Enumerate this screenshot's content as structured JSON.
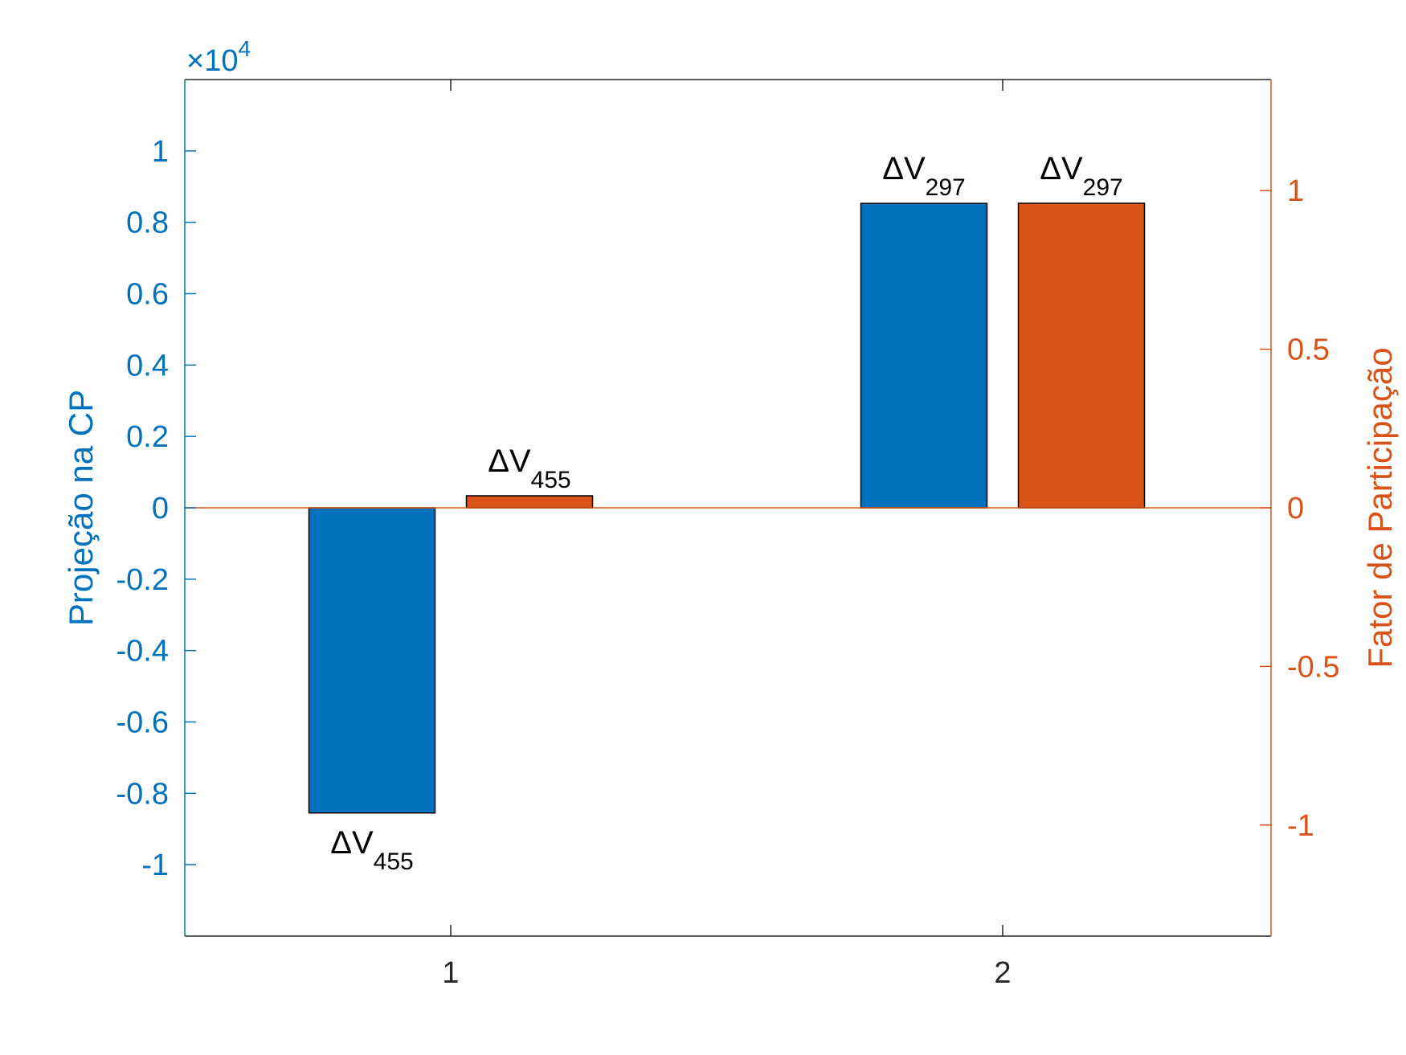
{
  "colors": {
    "left_axis": "#0072BD",
    "right_axis": "#D95319",
    "frame": "#262626",
    "bar_edge": "#000000",
    "label_text": "#000000",
    "background": "#ffffff"
  },
  "chart_data": {
    "type": "bar",
    "categories": [
      "1",
      "2"
    ],
    "x_tick_labels": [
      "1",
      "2"
    ],
    "left_axis": {
      "label": "Projeção na CP",
      "exponent_label": "×10",
      "exponent_power": "4",
      "ylim": [
        -1.2,
        1.2
      ],
      "ticks": [
        "-1",
        "-0.8",
        "-0.6",
        "-0.4",
        "-0.2",
        "0",
        "0.2",
        "0.4",
        "0.6",
        "0.8",
        "1"
      ]
    },
    "right_axis": {
      "label": "Fator de Participação",
      "ylim": [
        -1.35,
        1.35
      ],
      "ticks": [
        "-1",
        "-0.5",
        "0",
        "0.5",
        "1"
      ]
    },
    "series": [
      {
        "axis": "left",
        "values": [
          -0.855,
          0.853
        ],
        "bar_labels": [
          {
            "base": "ΔV",
            "sub": "455"
          },
          {
            "base": "ΔV",
            "sub": "297"
          }
        ]
      },
      {
        "axis": "right",
        "values": [
          0.038,
          0.96
        ],
        "bar_labels": [
          {
            "base": "ΔV",
            "sub": "455"
          },
          {
            "base": "ΔV",
            "sub": "297"
          }
        ]
      }
    ],
    "grid": false,
    "legend": "none"
  }
}
